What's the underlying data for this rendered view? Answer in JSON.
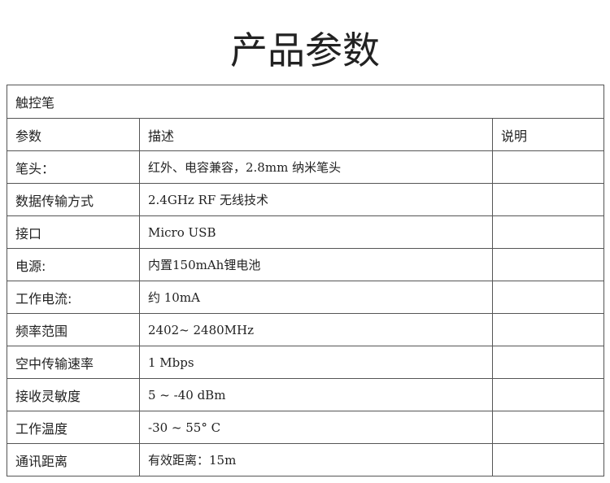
{
  "header": {
    "title": "产品参数"
  },
  "table": {
    "caption": "触控笔",
    "columns": [
      "参数",
      "描述",
      "说明"
    ],
    "rows": [
      [
        "笔头：",
        "红外、电容兼容，2.8mm 纳米笔头"
      ],
      [
        "数据传输方式",
        "2.4GHz RF 无线技术"
      ],
      [
        "接口",
        "Micro USB"
      ],
      [
        "电源:",
        "内置150mAh锂电池"
      ],
      [
        "工作电流:",
        "约 10mA"
      ],
      [
        "频率范围",
        "2402~ 2480MHz"
      ],
      [
        "空中传输速率",
        "1 Mbps"
      ],
      [
        "接收灵敏度",
        "5 ~ -40 dBm"
      ],
      [
        "工作温度",
        "-30 ~ 55° C"
      ],
      [
        "通讯距离",
        "有效距离：15m"
      ]
    ]
  }
}
